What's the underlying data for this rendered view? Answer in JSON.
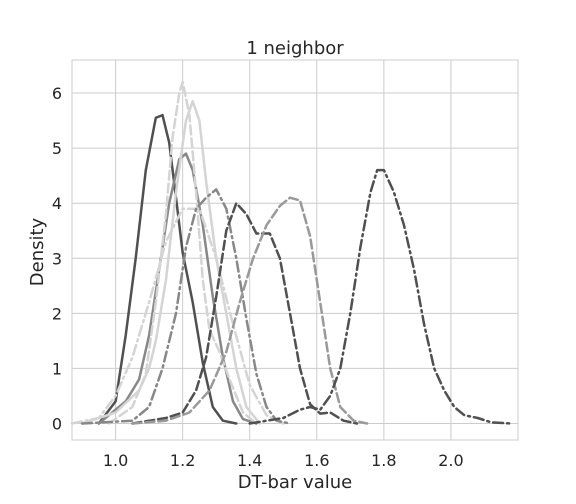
{
  "chart_data": {
    "type": "line",
    "title": "1 neighbor",
    "xlabel": "DT-bar value",
    "ylabel": "Density",
    "xlim": [
      0.87,
      2.2
    ],
    "ylim": [
      -0.3,
      6.6
    ],
    "xticks": [
      "1.0",
      "1.2",
      "1.4",
      "1.6",
      "1.8",
      "2.0"
    ],
    "yticks": [
      "0",
      "1",
      "2",
      "3",
      "4",
      "5",
      "6"
    ],
    "grid": true,
    "series": [
      {
        "color": "#505050",
        "dash": "solid",
        "points": [
          [
            0.95,
            0
          ],
          [
            1.0,
            0.4
          ],
          [
            1.03,
            1.6
          ],
          [
            1.06,
            3.0
          ],
          [
            1.09,
            4.6
          ],
          [
            1.12,
            5.55
          ],
          [
            1.14,
            5.6
          ],
          [
            1.16,
            5.1
          ],
          [
            1.18,
            4.1
          ],
          [
            1.2,
            3.1
          ],
          [
            1.23,
            2.2
          ],
          [
            1.26,
            1.1
          ],
          [
            1.29,
            0.3
          ],
          [
            1.32,
            0.05
          ],
          [
            1.36,
            0
          ]
        ]
      },
      {
        "color": "#888888",
        "dash": "solid",
        "points": [
          [
            0.95,
            0
          ],
          [
            1.03,
            0.4
          ],
          [
            1.07,
            0.8
          ],
          [
            1.1,
            1.6
          ],
          [
            1.13,
            2.8
          ],
          [
            1.16,
            4.0
          ],
          [
            1.19,
            4.8
          ],
          [
            1.21,
            4.9
          ],
          [
            1.23,
            4.6
          ],
          [
            1.26,
            3.6
          ],
          [
            1.29,
            2.3
          ],
          [
            1.32,
            1.2
          ],
          [
            1.35,
            0.4
          ],
          [
            1.38,
            0.08
          ],
          [
            1.42,
            0
          ]
        ]
      },
      {
        "color": "#d4d4d4",
        "dash": "dashed",
        "points": [
          [
            0.98,
            0
          ],
          [
            1.05,
            0.3
          ],
          [
            1.09,
            0.9
          ],
          [
            1.12,
            2.2
          ],
          [
            1.15,
            3.8
          ],
          [
            1.17,
            5.2
          ],
          [
            1.19,
            6.0
          ],
          [
            1.2,
            6.2
          ],
          [
            1.22,
            5.6
          ],
          [
            1.24,
            4.2
          ],
          [
            1.26,
            2.6
          ],
          [
            1.28,
            1.7
          ],
          [
            1.31,
            1.3
          ],
          [
            1.34,
            0.8
          ],
          [
            1.38,
            0.2
          ],
          [
            1.42,
            0
          ]
        ]
      },
      {
        "color": "#d4d4d4",
        "dash": "solid",
        "points": [
          [
            0.9,
            0
          ],
          [
            1.0,
            0.2
          ],
          [
            1.07,
            0.6
          ],
          [
            1.1,
            1.0
          ],
          [
            1.12,
            1.5
          ],
          [
            1.15,
            2.6
          ],
          [
            1.18,
            4.2
          ],
          [
            1.21,
            5.5
          ],
          [
            1.23,
            5.85
          ],
          [
            1.25,
            5.5
          ],
          [
            1.27,
            4.4
          ],
          [
            1.3,
            3.0
          ],
          [
            1.33,
            2.0
          ],
          [
            1.36,
            1.0
          ],
          [
            1.39,
            0.3
          ],
          [
            1.43,
            0
          ]
        ]
      },
      {
        "color": "#d4d4d4",
        "dash": "dashdot",
        "points": [
          [
            0.87,
            0
          ],
          [
            0.95,
            0.1
          ],
          [
            1.0,
            0.5
          ],
          [
            1.05,
            1.2
          ],
          [
            1.1,
            2.2
          ],
          [
            1.15,
            3.3
          ],
          [
            1.2,
            3.9
          ],
          [
            1.25,
            3.9
          ],
          [
            1.3,
            3.0
          ],
          [
            1.35,
            1.8
          ],
          [
            1.4,
            0.7
          ],
          [
            1.45,
            0.15
          ],
          [
            1.5,
            0
          ]
        ]
      },
      {
        "color": "#888888",
        "dash": "dashdot",
        "points": [
          [
            0.9,
            0
          ],
          [
            1.05,
            0.05
          ],
          [
            1.1,
            0.3
          ],
          [
            1.14,
            1.0
          ],
          [
            1.18,
            2.0
          ],
          [
            1.21,
            3.2
          ],
          [
            1.24,
            3.9
          ],
          [
            1.27,
            4.1
          ],
          [
            1.3,
            4.25
          ],
          [
            1.33,
            3.9
          ],
          [
            1.36,
            3.0
          ],
          [
            1.39,
            1.9
          ],
          [
            1.42,
            0.9
          ],
          [
            1.45,
            0.3
          ],
          [
            1.48,
            0.05
          ],
          [
            1.52,
            0
          ]
        ]
      },
      {
        "color": "#505050",
        "dash": "dashed",
        "points": [
          [
            1.05,
            0
          ],
          [
            1.15,
            0.1
          ],
          [
            1.2,
            0.2
          ],
          [
            1.24,
            0.6
          ],
          [
            1.27,
            1.2
          ],
          [
            1.3,
            2.3
          ],
          [
            1.33,
            3.5
          ],
          [
            1.36,
            4.0
          ],
          [
            1.39,
            3.8
          ],
          [
            1.42,
            3.45
          ],
          [
            1.46,
            3.45
          ],
          [
            1.49,
            3.0
          ],
          [
            1.52,
            2.0
          ],
          [
            1.55,
            1.0
          ],
          [
            1.58,
            0.35
          ],
          [
            1.61,
            0.18
          ],
          [
            1.64,
            0.2
          ],
          [
            1.68,
            0.05
          ],
          [
            1.72,
            0
          ]
        ]
      },
      {
        "color": "#999999",
        "dash": "dashed",
        "points": [
          [
            1.05,
            0
          ],
          [
            1.15,
            0.05
          ],
          [
            1.22,
            0.2
          ],
          [
            1.28,
            0.6
          ],
          [
            1.33,
            1.3
          ],
          [
            1.37,
            2.2
          ],
          [
            1.41,
            3.0
          ],
          [
            1.45,
            3.6
          ],
          [
            1.49,
            3.95
          ],
          [
            1.52,
            4.1
          ],
          [
            1.55,
            4.05
          ],
          [
            1.58,
            3.4
          ],
          [
            1.61,
            2.2
          ],
          [
            1.64,
            1.0
          ],
          [
            1.67,
            0.3
          ],
          [
            1.71,
            0.05
          ],
          [
            1.75,
            0
          ]
        ]
      },
      {
        "color": "#505050",
        "dash": "dashdot",
        "points": [
          [
            1.4,
            0
          ],
          [
            1.5,
            0.1
          ],
          [
            1.55,
            0.25
          ],
          [
            1.58,
            0.3
          ],
          [
            1.61,
            0.25
          ],
          [
            1.64,
            0.5
          ],
          [
            1.67,
            1.0
          ],
          [
            1.7,
            2.0
          ],
          [
            1.73,
            3.2
          ],
          [
            1.76,
            4.2
          ],
          [
            1.78,
            4.6
          ],
          [
            1.8,
            4.6
          ],
          [
            1.83,
            4.2
          ],
          [
            1.86,
            3.6
          ],
          [
            1.89,
            2.8
          ],
          [
            1.92,
            1.8
          ],
          [
            1.95,
            1.0
          ],
          [
            1.98,
            0.6
          ],
          [
            2.01,
            0.3
          ],
          [
            2.04,
            0.15
          ],
          [
            2.08,
            0.1
          ],
          [
            2.12,
            0.02
          ],
          [
            2.18,
            0
          ]
        ]
      }
    ]
  }
}
